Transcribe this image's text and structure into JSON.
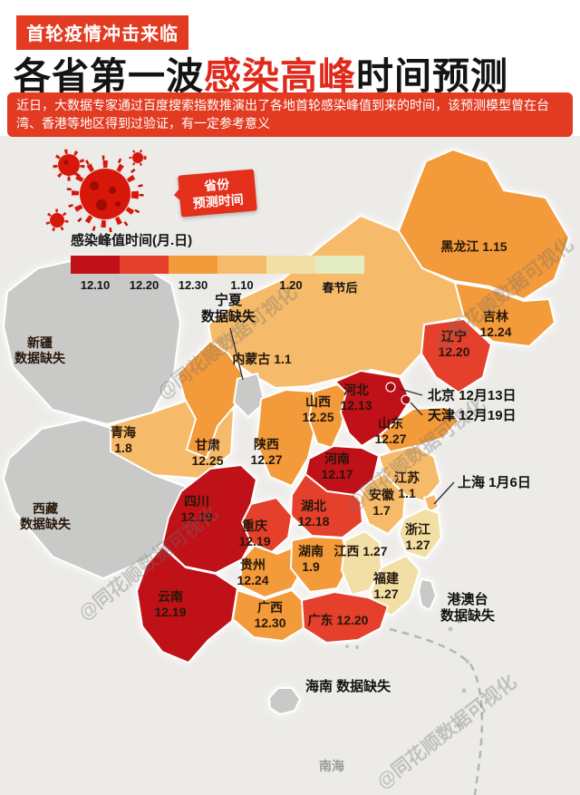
{
  "header": {
    "tag": "首轮疫情冲击来临",
    "title_prefix": "各省第一波",
    "title_highlight": "感染高峰",
    "title_suffix": "时间预测",
    "subtitle": "近日，大数据专家通过百度搜索指数推演出了各地首轮感染峰值到来的时间，该预测模型曾在台湾、香港等地区得到过验证，有一定参考意义"
  },
  "legend": {
    "callout": {
      "line1": "省份",
      "line2": "预测时间"
    },
    "title": "感染峰值时间(月.日)",
    "items": [
      {
        "label": "12.10",
        "color": "#c01118"
      },
      {
        "label": "12.20",
        "color": "#e5402b"
      },
      {
        "label": "12.30",
        "color": "#f39a3a"
      },
      {
        "label": "1.10",
        "color": "#f6bb6a"
      },
      {
        "label": "1.20",
        "color": "#f2dfa6"
      },
      {
        "label": "春节后",
        "color": "#e3ecc3"
      }
    ]
  },
  "map": {
    "watermark": "@同花顺数据可视化",
    "sea_label": "南海",
    "provinces": [
      {
        "id": "heilongjiang",
        "name": "黑龙江",
        "value": "1.15",
        "color": "#f39a3a"
      },
      {
        "id": "jilin",
        "name": "吉林",
        "value": "12.24",
        "color": "#f39a3a"
      },
      {
        "id": "liaoning",
        "name": "辽宁",
        "value": "12.20",
        "color": "#e5402b"
      },
      {
        "id": "neimenggu",
        "name": "内蒙古",
        "value": "1.1",
        "color": "#f6bb6a"
      },
      {
        "id": "xinjiang",
        "name": "新疆",
        "value": "数据缺失",
        "color": "#c9c9c7"
      },
      {
        "id": "qinghai",
        "name": "青海",
        "value": "1.8",
        "color": "#f6bb6a"
      },
      {
        "id": "xizang",
        "name": "西藏",
        "value": "数据缺失",
        "color": "#c9c9c7"
      },
      {
        "id": "gansu",
        "name": "甘肃",
        "value": "12.25",
        "color": "#f39a3a"
      },
      {
        "id": "ningxia",
        "name": "宁夏",
        "value": "数据缺失",
        "color": "#c9c9c7"
      },
      {
        "id": "shaanxi",
        "name": "陕西",
        "value": "12.27",
        "color": "#f39a3a"
      },
      {
        "id": "shanxi",
        "name": "山西",
        "value": "12.25",
        "color": "#f39a3a"
      },
      {
        "id": "hebei",
        "name": "河北",
        "value": "12.13",
        "color": "#c01118"
      },
      {
        "id": "shandong",
        "name": "山东",
        "value": "12.27",
        "color": "#f39a3a"
      },
      {
        "id": "henan",
        "name": "河南",
        "value": "12.17",
        "color": "#c01118"
      },
      {
        "id": "jiangsu",
        "name": "江苏",
        "value": "1.1",
        "color": "#f6bb6a"
      },
      {
        "id": "anhui",
        "name": "安徽",
        "value": "1.7",
        "color": "#f6bb6a"
      },
      {
        "id": "shanghai",
        "name": "上海",
        "value": "",
        "color": "#f6bb6a"
      },
      {
        "id": "hubei",
        "name": "湖北",
        "value": "12.18",
        "color": "#e5402b"
      },
      {
        "id": "chongqing",
        "name": "重庆",
        "value": "12.19",
        "color": "#e5402b"
      },
      {
        "id": "sichuan",
        "name": "四川",
        "value": "12.19",
        "color": "#c01118"
      },
      {
        "id": "guizhou",
        "name": "贵州",
        "value": "12.24",
        "color": "#f39a3a"
      },
      {
        "id": "hunan",
        "name": "湖南",
        "value": "1.9",
        "color": "#f39a3a"
      },
      {
        "id": "jiangxi",
        "name": "江西",
        "value": "1.27",
        "color": "#f2dfa6"
      },
      {
        "id": "zhejiang",
        "name": "浙江",
        "value": "1.27",
        "color": "#f2dfa6"
      },
      {
        "id": "fujian",
        "name": "福建",
        "value": "1.27",
        "color": "#f2dfa6"
      },
      {
        "id": "yunnan",
        "name": "云南",
        "value": "12.19",
        "color": "#c01118"
      },
      {
        "id": "guangxi",
        "name": "广西",
        "value": "12.30",
        "color": "#f39a3a"
      },
      {
        "id": "guangdong",
        "name": "广东",
        "value": "12.20",
        "color": "#e5402b"
      },
      {
        "id": "hainan",
        "name": "海南",
        "value": "数据缺失",
        "color": "#c9c9c7"
      },
      {
        "id": "taiwan",
        "name": "台湾",
        "value": "",
        "color": "#c9c9c7"
      }
    ],
    "annotations": [
      {
        "id": "beijing",
        "name": "北京",
        "value": "12月13日"
      },
      {
        "id": "tianjin",
        "name": "天津",
        "value": "12月19日"
      },
      {
        "id": "shanghai_note",
        "name": "上海",
        "value": "1月6日"
      },
      {
        "id": "ningxia_note",
        "name": "宁夏",
        "value": "数据缺失"
      },
      {
        "id": "hainan_note",
        "name": "海南",
        "value": "数据缺失"
      },
      {
        "id": "gangaotai",
        "name": "港澳台",
        "value": "数据缺失"
      }
    ]
  }
}
